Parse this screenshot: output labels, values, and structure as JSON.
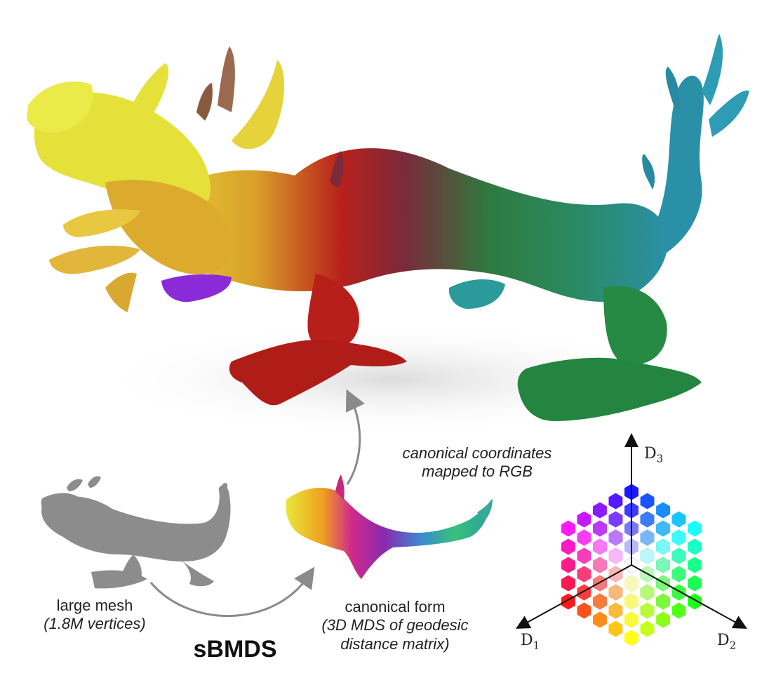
{
  "labels": {
    "large_mesh": "large mesh",
    "large_mesh_detail": "(1.8M vertices)",
    "method": "sBMDS",
    "canonical_form": "canonical form",
    "canonical_form_detail_1": "(3D MDS of geodesic",
    "canonical_form_detail_2": "distance matrix)",
    "mapping_1": "canonical coordinates",
    "mapping_2": "mapped to RGB"
  },
  "axes": {
    "d1": "D",
    "d1_sub": "1",
    "d2": "D",
    "d2_sub": "2",
    "d3": "D",
    "d3_sub": "3"
  },
  "colors": {
    "head_yellow": "#e8e23a",
    "mane_gold": "#e0b030",
    "body_red": "#b8201c",
    "body_green": "#2a8a48",
    "tail_teal": "#2a8fa0",
    "arrow_gray": "#8a8a8a",
    "mesh_gray": "#8c8c8c"
  }
}
